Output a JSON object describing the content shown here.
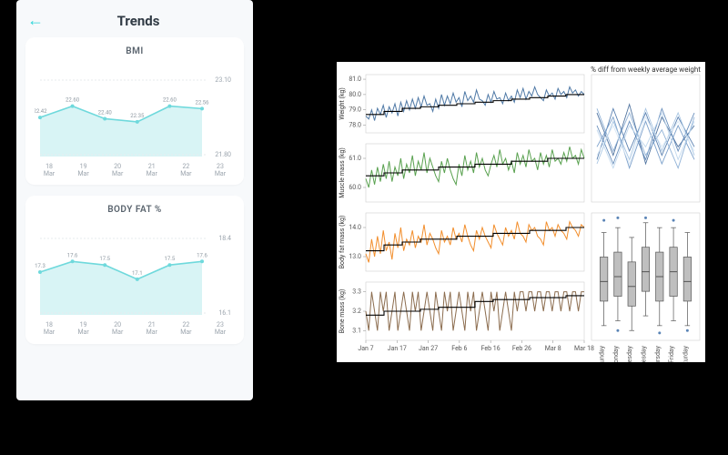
{
  "phone": {
    "title": "Trends",
    "back_icon": "←",
    "bmi_card": {
      "title": "BMI",
      "type": "area",
      "line_color": "#6fd9dc",
      "fill_color": "#d8f4f5",
      "point_color": "#6fd9dc",
      "background": "#ffffff",
      "x_labels": [
        "18",
        "19",
        "20",
        "21",
        "22",
        "23"
      ],
      "x_sublabel": "Mar",
      "y_max_label": "23.10",
      "y_min_label": "21.80",
      "values": [
        22.42,
        22.6,
        22.4,
        22.35,
        22.6,
        22.56
      ],
      "labels": [
        "22.42",
        "22.60",
        "22.40",
        "22.35",
        "22.60",
        "22.56"
      ],
      "y_domain": [
        21.8,
        23.1
      ]
    },
    "fat_card": {
      "title": "BODY FAT %",
      "type": "area",
      "line_color": "#6fd9dc",
      "fill_color": "#d8f4f5",
      "point_color": "#6fd9dc",
      "background": "#ffffff",
      "x_labels": [
        "18",
        "19",
        "20",
        "21",
        "22",
        "23"
      ],
      "x_sublabel": "Mar",
      "y_max_label": "18.4",
      "y_min_label": "16.1",
      "values": [
        17.3,
        17.6,
        17.5,
        17.1,
        17.5,
        17.6
      ],
      "labels": [
        "17.3",
        "17.6",
        "17.5",
        "17.1",
        "17.5",
        "17.6"
      ],
      "y_domain": [
        16.1,
        18.4
      ]
    }
  },
  "dash": {
    "background": "#ffffff",
    "x_ticks": [
      "Jan 7",
      "Jan 17",
      "Jan 27",
      "Feb 6",
      "Feb 16",
      "Feb 26",
      "Mar 8",
      "Mar 18"
    ],
    "diff_title": "% diff from weekly average weight",
    "day_labels": [
      "Sunday",
      "Monday",
      "Tuesday",
      "Wednesday",
      "Thursday",
      "Friday",
      "Saturday"
    ],
    "weight": {
      "type": "line",
      "label": "Weight (kg)",
      "color": "#4f79a6",
      "step_color": "#000000",
      "y_ticks": [
        78.0,
        79.0,
        80.0,
        81.0
      ],
      "ylim": [
        77.5,
        81.3
      ],
      "values": [
        78.6,
        78.4,
        79.0,
        78.3,
        79.1,
        78.7,
        79.3,
        78.5,
        79.2,
        78.8,
        79.4,
        78.6,
        79.5,
        78.9,
        79.6,
        79.0,
        79.7,
        79.1,
        79.8,
        79.2,
        79.9,
        79.3,
        79.4,
        78.9,
        79.7,
        79.1,
        80.0,
        79.3,
        79.9,
        79.4,
        80.1,
        79.5,
        79.8,
        79.2,
        80.2,
        79.6,
        79.9,
        79.5,
        80.3,
        79.7,
        79.6,
        79.3,
        80.0,
        79.5,
        80.2,
        79.7,
        79.8,
        79.4,
        80.1,
        79.6,
        79.9,
        79.5,
        80.3,
        79.8,
        80.4,
        79.7,
        80.2,
        79.9,
        80.5,
        80.0,
        79.8,
        79.6,
        80.3,
        79.9,
        80.1,
        79.7,
        80.4,
        80.0,
        80.2,
        79.8,
        80.5,
        80.1,
        80.3,
        79.9,
        80.2,
        80.0
      ],
      "step": [
        78.7,
        78.9,
        79.1,
        79.2,
        79.3,
        79.4,
        79.5,
        79.6,
        79.7,
        79.8,
        79.9,
        80.0
      ]
    },
    "muscle": {
      "type": "line",
      "label": "Muscle mass (kg)",
      "color": "#59a14f",
      "step_color": "#000000",
      "y_ticks": [
        60.0,
        61.0
      ],
      "ylim": [
        59.5,
        61.5
      ],
      "values": [
        60.3,
        60.0,
        60.6,
        60.1,
        60.7,
        60.2,
        60.8,
        60.3,
        60.9,
        60.2,
        60.7,
        60.4,
        61.0,
        60.3,
        60.8,
        60.5,
        61.1,
        60.4,
        60.9,
        60.6,
        61.2,
        60.5,
        61.0,
        60.7,
        60.4,
        60.2,
        60.9,
        60.5,
        61.0,
        60.6,
        60.3,
        60.1,
        60.8,
        60.4,
        61.1,
        60.6,
        60.9,
        60.5,
        61.2,
        60.7,
        61.0,
        60.6,
        60.4,
        60.8,
        61.1,
        60.7,
        61.3,
        60.8,
        61.0,
        60.6,
        60.9,
        60.5,
        61.2,
        60.8,
        61.1,
        60.7,
        61.3,
        60.9,
        61.0,
        60.6,
        61.2,
        60.8,
        61.1,
        60.7,
        61.3,
        60.9,
        61.0,
        60.8,
        61.2,
        60.9,
        61.4,
        61.0,
        61.1,
        60.8,
        61.3,
        61.0
      ],
      "step": [
        60.4,
        60.5,
        60.6,
        60.6,
        60.7,
        60.7,
        60.8,
        60.8,
        60.9,
        60.9,
        61.0,
        61.0
      ]
    },
    "fat": {
      "type": "line",
      "label": "Body fat mass (kg)",
      "color": "#f28e2c",
      "step_color": "#000000",
      "y_ticks": [
        13.0,
        14.0
      ],
      "ylim": [
        12.5,
        14.5
      ],
      "values": [
        13.1,
        12.8,
        13.6,
        13.0,
        13.7,
        13.1,
        13.9,
        13.2,
        13.5,
        12.9,
        13.8,
        13.3,
        14.0,
        13.2,
        13.6,
        13.4,
        13.9,
        13.3,
        13.7,
        13.5,
        14.1,
        13.4,
        13.8,
        13.6,
        13.3,
        13.1,
        13.9,
        13.5,
        13.7,
        13.4,
        14.0,
        13.6,
        13.8,
        13.5,
        14.1,
        13.7,
        13.4,
        13.2,
        13.9,
        13.6,
        14.0,
        13.7,
        13.5,
        13.3,
        14.1,
        13.8,
        13.6,
        13.4,
        14.0,
        13.7,
        13.9,
        13.6,
        14.2,
        13.8,
        13.7,
        13.5,
        14.1,
        13.9,
        14.0,
        13.7,
        13.6,
        13.4,
        14.2,
        13.9,
        14.0,
        13.7,
        14.1,
        13.9,
        13.8,
        13.6,
        14.2,
        14.0,
        13.9,
        13.7,
        14.1,
        14.0
      ],
      "step": [
        13.2,
        13.4,
        13.5,
        13.6,
        13.6,
        13.7,
        13.7,
        13.8,
        13.8,
        13.9,
        13.9,
        14.0
      ]
    },
    "bone": {
      "type": "line",
      "label": "Bone mass (kg)",
      "color": "#8c6d4f",
      "step_color": "#000000",
      "y_ticks": [
        3.1,
        3.2,
        3.3
      ],
      "ylim": [
        3.05,
        3.35
      ],
      "values": [
        3.2,
        3.1,
        3.3,
        3.2,
        3.1,
        3.3,
        3.2,
        3.3,
        3.1,
        3.2,
        3.3,
        3.1,
        3.2,
        3.3,
        3.2,
        3.1,
        3.3,
        3.2,
        3.3,
        3.1,
        3.2,
        3.3,
        3.2,
        3.1,
        3.3,
        3.2,
        3.1,
        3.3,
        3.2,
        3.3,
        3.1,
        3.2,
        3.3,
        3.2,
        3.1,
        3.3,
        3.2,
        3.3,
        3.1,
        3.2,
        3.3,
        3.2,
        3.1,
        3.3,
        3.2,
        3.3,
        3.1,
        3.2,
        3.3,
        3.2,
        3.1,
        3.3,
        3.2,
        3.3,
        3.3,
        3.2,
        3.3,
        3.3,
        3.2,
        3.3,
        3.3,
        3.2,
        3.3,
        3.3,
        3.2,
        3.3,
        3.3,
        3.2,
        3.3,
        3.3,
        3.2,
        3.3,
        3.3,
        3.2,
        3.3,
        3.3
      ],
      "step": [
        3.18,
        3.2,
        3.2,
        3.21,
        3.22,
        3.22,
        3.25,
        3.26,
        3.26,
        3.27,
        3.27,
        3.28
      ]
    },
    "diff_lines": {
      "type": "multiline",
      "colors": [
        "#3f6696",
        "#4a74a8",
        "#5a84b6",
        "#6f97c5",
        "#86abd3",
        "#a1c1e0",
        "#bcd5ec",
        "#d5e6f5"
      ],
      "ylim": [
        -1.5,
        1.5
      ],
      "series": [
        [
          0.6,
          -0.4,
          0.8,
          -0.6,
          0.5,
          -0.2,
          0.3
        ],
        [
          -0.5,
          0.7,
          -0.3,
          0.6,
          -0.4,
          0.5,
          -0.2
        ],
        [
          0.3,
          -0.6,
          0.4,
          -0.5,
          0.7,
          -0.3,
          0.6
        ],
        [
          -0.2,
          0.5,
          -0.7,
          0.4,
          -0.6,
          0.3,
          -0.5
        ],
        [
          0.7,
          -0.3,
          0.6,
          -0.4,
          0.2,
          -0.7,
          0.5
        ],
        [
          -0.6,
          0.4,
          -0.5,
          0.7,
          -0.3,
          0.6,
          -0.4
        ],
        [
          0.2,
          -0.7,
          0.3,
          -0.2,
          0.6,
          -0.5,
          0.4
        ],
        [
          -0.4,
          0.3,
          -0.6,
          0.5,
          -0.2,
          0.4,
          -0.3
        ]
      ]
    },
    "box": {
      "type": "boxplot",
      "fill": "#bfbfbf",
      "stroke": "#555555",
      "point_color": "#5a84b6",
      "ylim": [
        -1.3,
        1.3
      ],
      "stats": [
        {
          "min": -1.0,
          "q1": -0.5,
          "med": -0.1,
          "q3": 0.4,
          "max": 0.9
        },
        {
          "min": -0.9,
          "q1": -0.4,
          "med": 0.0,
          "q3": 0.5,
          "max": 1.0
        },
        {
          "min": -1.1,
          "q1": -0.6,
          "med": -0.2,
          "q3": 0.3,
          "max": 0.8
        },
        {
          "min": -0.8,
          "q1": -0.3,
          "med": 0.1,
          "q3": 0.6,
          "max": 1.1
        },
        {
          "min": -1.0,
          "q1": -0.5,
          "med": 0.0,
          "q3": 0.5,
          "max": 1.0
        },
        {
          "min": -0.9,
          "q1": -0.4,
          "med": 0.1,
          "q3": 0.6,
          "max": 1.0
        },
        {
          "min": -1.0,
          "q1": -0.5,
          "med": -0.1,
          "q3": 0.4,
          "max": 0.9
        }
      ],
      "outliers": [
        [
          1.15
        ],
        [
          -1.1,
          1.2
        ],
        [],
        [
          1.2
        ],
        [
          -1.15
        ],
        [
          1.15
        ],
        [
          -1.1
        ]
      ]
    }
  }
}
